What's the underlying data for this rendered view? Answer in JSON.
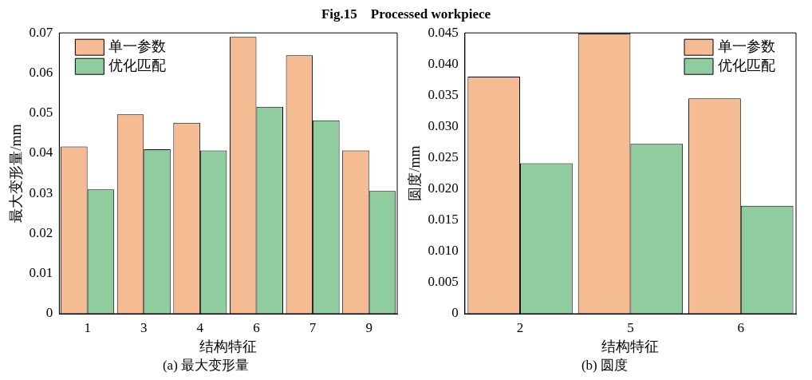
{
  "chart_data": [
    {
      "type": "bar",
      "title": "Fig.15    Processed workpiece",
      "xlabel": "结构特征",
      "ylabel": "最大变形量/mm",
      "categories": [
        "1",
        "3",
        "4",
        "6",
        "7",
        "9"
      ],
      "series": [
        {
          "name": "单一参数",
          "color": "#f5bb93",
          "values": [
            0.0417,
            0.0497,
            0.0476,
            0.069,
            0.0644,
            0.0407
          ]
        },
        {
          "name": "优化匹配",
          "color": "#8fcc9e",
          "values": [
            0.031,
            0.041,
            0.0407,
            0.0516,
            0.0482,
            0.0306
          ]
        }
      ],
      "ylim": [
        0,
        0.07
      ],
      "yticks": [
        0,
        0.01,
        0.02,
        0.03,
        0.04,
        0.05,
        0.06,
        0.07
      ],
      "grid": false,
      "legend": "top left",
      "annotations": [
        "(a) 最大变形量"
      ]
    },
    {
      "type": "bar",
      "xlabel": "结构特征",
      "ylabel": "圆度/mm",
      "categories": [
        "2",
        "5",
        "6"
      ],
      "series": [
        {
          "name": "单一参数",
          "color": "#f5bb93",
          "values": [
            0.038,
            0.0449,
            0.0345
          ]
        },
        {
          "name": "优化匹配",
          "color": "#8fcc9e",
          "values": [
            0.0241,
            0.0272,
            0.0173
          ]
        }
      ],
      "ylim": [
        0,
        0.045
      ],
      "yticks": [
        0,
        0.005,
        {
          "value": 0.01,
          "label": "0.010"
        },
        0.015,
        {
          "value": 0.02,
          "label": "0.020"
        },
        0.025,
        {
          "value": 0.03,
          "label": "0.030"
        },
        0.035,
        {
          "value": 0.04,
          "label": "0.040"
        },
        0.045
      ],
      "grid": false,
      "legend": "top right",
      "annotations": [
        "(b) 圆度"
      ]
    }
  ]
}
